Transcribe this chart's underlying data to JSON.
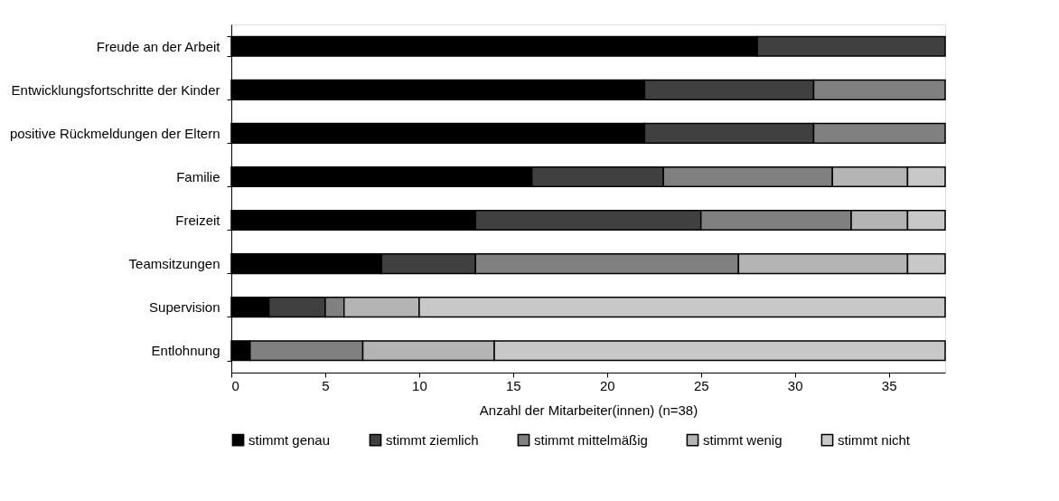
{
  "chart_data": {
    "type": "bar",
    "orientation": "horizontal",
    "stacked": true,
    "categories": [
      "Freude an der Arbeit",
      "Entwicklungsfortschritte der Kinder",
      "positive Rückmeldungen der Eltern",
      "Familie",
      "Freizeit",
      "Teamsitzungen",
      "Supervision",
      "Entlohnung"
    ],
    "series": [
      {
        "name": "stimmt genau",
        "color": "#000000",
        "values": [
          28,
          22,
          22,
          16,
          13,
          8,
          2,
          1
        ]
      },
      {
        "name": "stimmt ziemlich",
        "color": "#404040",
        "values": [
          10,
          9,
          9,
          7,
          12,
          5,
          3,
          0
        ]
      },
      {
        "name": "stimmt mittelmäßig",
        "color": "#808080",
        "values": [
          0,
          7,
          7,
          9,
          8,
          14,
          1,
          6
        ]
      },
      {
        "name": "stimmt wenig",
        "color": "#b4b4b4",
        "values": [
          0,
          0,
          0,
          4,
          3,
          9,
          4,
          7
        ]
      },
      {
        "name": "stimmt nicht",
        "color": "#c8c8c8",
        "values": [
          0,
          0,
          0,
          2,
          2,
          2,
          28,
          24
        ]
      }
    ],
    "xlabel": "Anzahl der Mitarbeiter(innen) (n=38)",
    "xlim": [
      0,
      38
    ],
    "xticks": [
      0,
      5,
      10,
      15,
      20,
      25,
      30,
      35
    ],
    "legend": "bottom"
  }
}
